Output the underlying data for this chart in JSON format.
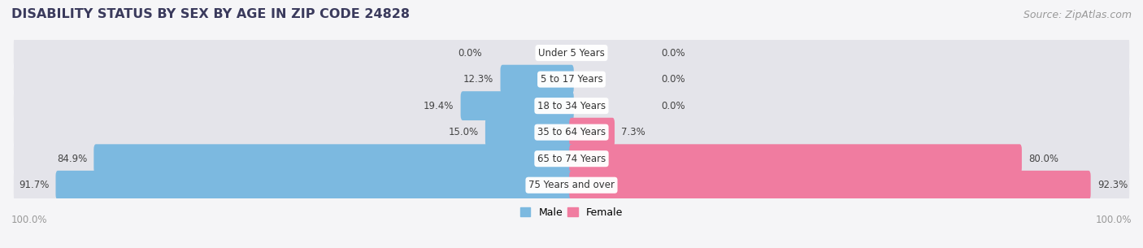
{
  "title": "DISABILITY STATUS BY SEX BY AGE IN ZIP CODE 24828",
  "source": "Source: ZipAtlas.com",
  "categories": [
    "Under 5 Years",
    "5 to 17 Years",
    "18 to 34 Years",
    "35 to 64 Years",
    "65 to 74 Years",
    "75 Years and over"
  ],
  "male_values": [
    0.0,
    12.3,
    19.4,
    15.0,
    84.9,
    91.7
  ],
  "female_values": [
    0.0,
    0.0,
    0.0,
    7.3,
    80.0,
    92.3
  ],
  "male_color": "#7cb9e0",
  "female_color": "#f07ca0",
  "bar_bg_color": "#e4e4ea",
  "bar_height": 0.7,
  "title_fontsize": 11.5,
  "source_fontsize": 9,
  "label_fontsize": 8.5,
  "category_fontsize": 8.5,
  "legend_fontsize": 9,
  "title_color": "#3a3a5c",
  "label_color": "#444444",
  "category_color": "#333333",
  "axis_label_color": "#999999",
  "background_color": "#f5f5f7"
}
